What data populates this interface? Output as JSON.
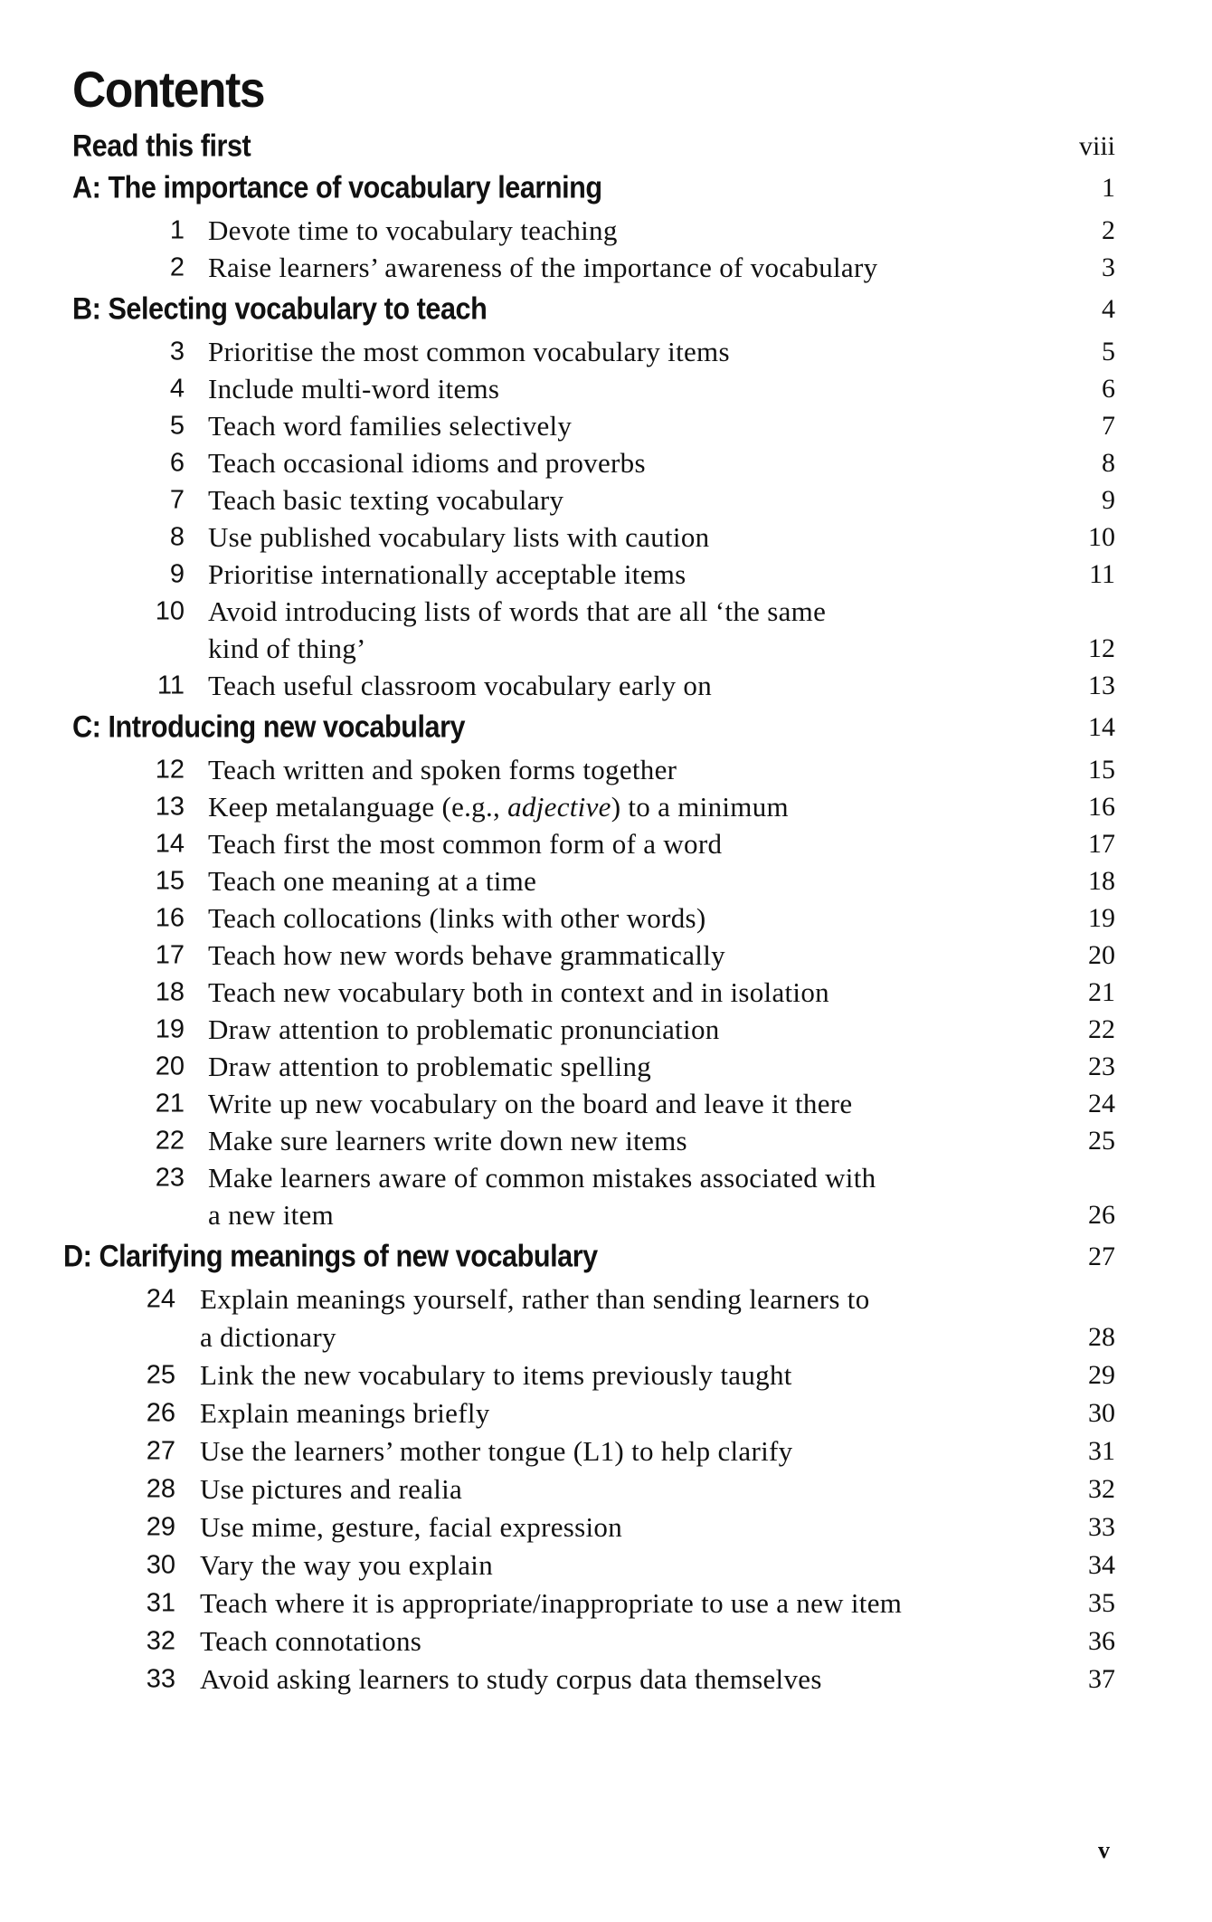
{
  "title": "Contents",
  "read_first": {
    "label": "Read this first",
    "page": "viii"
  },
  "sections": [
    {
      "label": "A: The importance of vocabulary learning",
      "page": "1",
      "items": [
        {
          "num": "1",
          "lines": [
            "Devote time to vocabulary teaching"
          ],
          "page": "2"
        },
        {
          "num": "2",
          "lines": [
            "Raise learners’ awareness of the importance of vocabulary"
          ],
          "page": "3"
        }
      ]
    },
    {
      "label": "B: Selecting vocabulary to teach",
      "page": "4",
      "items": [
        {
          "num": "3",
          "lines": [
            "Prioritise the most common vocabulary items"
          ],
          "page": "5"
        },
        {
          "num": "4",
          "lines": [
            "Include multi-word items"
          ],
          "page": "6"
        },
        {
          "num": "5",
          "lines": [
            "Teach word families selectively"
          ],
          "page": "7"
        },
        {
          "num": "6",
          "lines": [
            "Teach occasional idioms and proverbs"
          ],
          "page": "8"
        },
        {
          "num": "7",
          "lines": [
            "Teach basic texting vocabulary"
          ],
          "page": "9"
        },
        {
          "num": "8",
          "lines": [
            "Use published vocabulary lists with caution"
          ],
          "page": "10"
        },
        {
          "num": "9",
          "lines": [
            "Prioritise internationally acceptable items"
          ],
          "page": "11"
        },
        {
          "num": "10",
          "lines": [
            "Avoid introducing lists of words that are all ‘the same",
            "kind of thing’"
          ],
          "page": "12"
        },
        {
          "num": "11",
          "lines": [
            "Teach useful classroom vocabulary early on"
          ],
          "page": "13"
        }
      ]
    },
    {
      "label": "C: Introducing new vocabulary",
      "page": "14",
      "items": [
        {
          "num": "12",
          "lines": [
            "Teach written and spoken forms together"
          ],
          "page": "15"
        },
        {
          "num": "13",
          "lines": [
            "Keep metalanguage (e.g., adjective) to a minimum"
          ],
          "italic": "adjective",
          "page": "16"
        },
        {
          "num": "14",
          "lines": [
            "Teach first the most common form of a word"
          ],
          "page": "17"
        },
        {
          "num": "15",
          "lines": [
            "Teach one meaning at a time"
          ],
          "page": "18"
        },
        {
          "num": "16",
          "lines": [
            "Teach collocations (links with other words)"
          ],
          "page": "19"
        },
        {
          "num": "17",
          "lines": [
            "Teach how new words behave grammatically"
          ],
          "page": "20"
        },
        {
          "num": "18",
          "lines": [
            "Teach new vocabulary both in context and in isolation"
          ],
          "page": "21"
        },
        {
          "num": "19",
          "lines": [
            "Draw attention to problematic pronunciation"
          ],
          "page": "22"
        },
        {
          "num": "20",
          "lines": [
            "Draw attention to problematic spelling"
          ],
          "page": "23"
        },
        {
          "num": "21",
          "lines": [
            "Write up new vocabulary on the board and leave it there"
          ],
          "page": "24"
        },
        {
          "num": "22",
          "lines": [
            "Make sure learners write down new items"
          ],
          "page": "25"
        },
        {
          "num": "23",
          "lines": [
            "Make learners aware of common mistakes associated with",
            "a new item"
          ],
          "page": "26"
        }
      ]
    },
    {
      "label": "D: Clarifying meanings of new vocabulary",
      "page": "27",
      "items": [
        {
          "num": "24",
          "lines": [
            "Explain meanings yourself, rather than sending learners to",
            "a dictionary"
          ],
          "page": "28"
        },
        {
          "num": "25",
          "lines": [
            "Link the new vocabulary to items previously taught"
          ],
          "page": "29"
        },
        {
          "num": "26",
          "lines": [
            "Explain meanings briefly"
          ],
          "page": "30"
        },
        {
          "num": "27",
          "lines": [
            "Use the learners’ mother tongue (L1) to help clarify"
          ],
          "page": "31"
        },
        {
          "num": "28",
          "lines": [
            "Use pictures and realia"
          ],
          "page": "32"
        },
        {
          "num": "29",
          "lines": [
            "Use mime, gesture, facial expression"
          ],
          "page": "33"
        },
        {
          "num": "30",
          "lines": [
            "Vary the way you explain"
          ],
          "page": "34"
        },
        {
          "num": "31",
          "lines": [
            "Teach where it is appropriate/inappropriate to use a new item"
          ],
          "page": "35"
        },
        {
          "num": "32",
          "lines": [
            "Teach connotations"
          ],
          "page": "36"
        },
        {
          "num": "33",
          "lines": [
            "Avoid asking learners to study corpus data themselves"
          ],
          "page": "37"
        }
      ]
    }
  ],
  "folio": "v"
}
